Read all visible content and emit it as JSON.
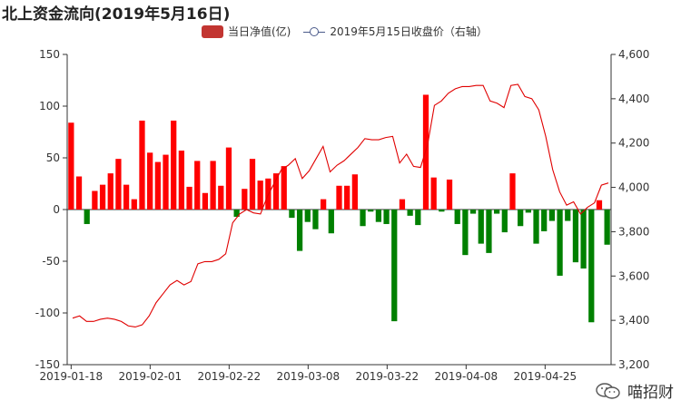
{
  "chart_data": {
    "type": "bar",
    "title": "北上资金流向(2019年5月16日)",
    "legend": [
      {
        "label": "当日净值(亿)",
        "kind": "bar"
      },
      {
        "label": "2019年5月15日收盘价（右轴）",
        "kind": "line"
      }
    ],
    "x_tick_labels": [
      "2019-01-18",
      "2019-02-01",
      "2019-02-22",
      "2019-03-08",
      "2019-03-22",
      "2019-04-08",
      "2019-04-25"
    ],
    "y_left": {
      "min": -150,
      "max": 150,
      "ticks": [
        150,
        100,
        50,
        0,
        -50,
        -100,
        -150
      ]
    },
    "y_right": {
      "min": 3200,
      "max": 4600,
      "ticks": [
        "4,600",
        "4,400",
        "4,200",
        "4,000",
        "3,800",
        "3,600",
        "3,400",
        "3,200"
      ]
    },
    "series": [
      {
        "name": "当日净值(亿)",
        "type": "bar",
        "positive_color": "#ff0000",
        "negative_color": "#008000",
        "values": [
          84,
          32,
          -14,
          18,
          24,
          35,
          49,
          24,
          10,
          86,
          55,
          46,
          53,
          86,
          57,
          22,
          47,
          16,
          47,
          23,
          60,
          -7,
          20,
          49,
          28,
          30,
          35,
          42,
          -8,
          -40,
          -12,
          -19,
          10,
          -23,
          23,
          23,
          34,
          -16,
          -2,
          -12,
          -14,
          -108,
          10,
          -6,
          -15,
          111,
          31,
          -2,
          29,
          -14,
          -44,
          -4,
          -33,
          -42,
          -4,
          -22,
          35,
          -16,
          -3,
          -33,
          -21,
          -11,
          -64,
          -11,
          -51,
          -57,
          -109,
          9,
          -34
        ]
      },
      {
        "name": "2019年5月15日收盘价（右轴）",
        "type": "line",
        "color": "#e00000",
        "values": [
          3410,
          3420,
          3395,
          3395,
          3405,
          3410,
          3405,
          3395,
          3375,
          3370,
          3380,
          3420,
          3480,
          3520,
          3560,
          3580,
          3560,
          3575,
          3655,
          3665,
          3665,
          3675,
          3700,
          3840,
          3880,
          3900,
          3885,
          3880,
          3960,
          4020,
          4080,
          4100,
          4130,
          4040,
          4075,
          4130,
          4185,
          4070,
          4100,
          4120,
          4150,
          4180,
          4220,
          4215,
          4215,
          4225,
          4230,
          4110,
          4150,
          4095,
          4090,
          4190,
          4370,
          4390,
          4425,
          4445,
          4455,
          4455,
          4460,
          4460,
          4390,
          4380,
          4360,
          4460,
          4465,
          4410,
          4400,
          4350,
          4230,
          4080,
          3980,
          3920,
          3935,
          3880,
          3910,
          3930,
          4010,
          4020
        ]
      }
    ],
    "watermark": "喵招财",
    "watermark_icon": "wechat-icon"
  }
}
